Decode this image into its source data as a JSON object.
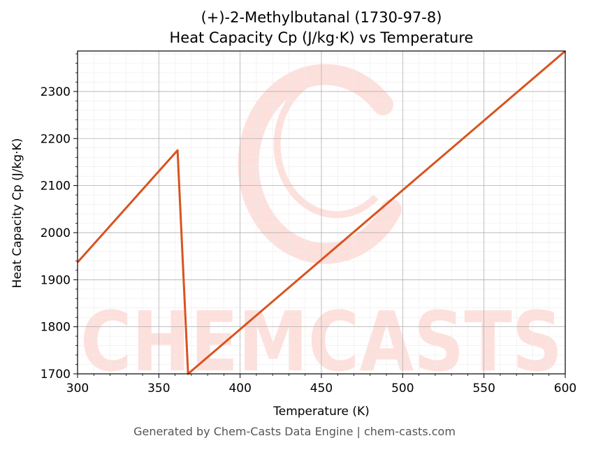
{
  "chart_data": {
    "type": "line",
    "title_line1": "(+)-2-Methylbutanal (1730-97-8)",
    "title_line2": "Heat Capacity Cp (J/kg·K) vs Temperature",
    "xlabel": "Temperature (K)",
    "ylabel": "Heat Capacity Cp (J/kg·K)",
    "xlim": [
      300,
      600
    ],
    "ylim": [
      1700,
      2386
    ],
    "x_ticks": [
      300,
      350,
      400,
      450,
      500,
      550,
      600
    ],
    "y_ticks": [
      1700,
      1800,
      1900,
      2000,
      2100,
      2200,
      2300
    ],
    "grid": true,
    "series": [
      {
        "color": "#d9531e",
        "x": [
          300,
          361.5,
          368,
          600
        ],
        "y": [
          1937,
          2175,
          1700,
          2386
        ]
      }
    ]
  },
  "watermark": {
    "text": "CHEMCASTS",
    "color": "#fde0dc"
  },
  "footer": "Generated by Chem-Casts Data Engine | chem-casts.com"
}
